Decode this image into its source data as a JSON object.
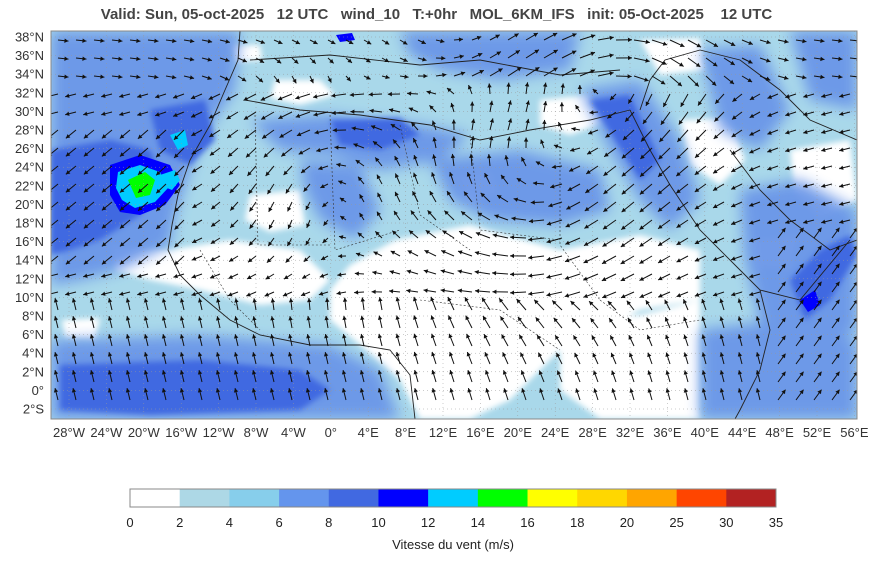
{
  "title": "Valid: Sun, 05-oct-2025   12 UTC   wind_10   T:+0hr   MOL_6KM_IFS   init: 05-Oct-2025    12 UTC",
  "map": {
    "variable": "wind_10",
    "lat_range": [
      -3,
      38.5
    ],
    "lon_range": [
      -30,
      57
    ],
    "lat_ticks": [
      "38°N",
      "36°N",
      "34°N",
      "32°N",
      "30°N",
      "28°N",
      "26°N",
      "24°N",
      "22°N",
      "20°N",
      "18°N",
      "16°N",
      "14°N",
      "12°N",
      "10°N",
      "8°N",
      "6°N",
      "4°N",
      "2°N",
      "0°",
      "2°S"
    ],
    "lon_ticks": [
      "28°W",
      "24°W",
      "20°W",
      "16°W",
      "12°W",
      "8°W",
      "4°W",
      "0°",
      "4°E",
      "8°E",
      "12°E",
      "16°E",
      "20°E",
      "24°E",
      "28°E",
      "32°E",
      "36°E",
      "40°E",
      "44°E",
      "48°E",
      "52°E",
      "56°E"
    ]
  },
  "colorbar": {
    "label": "Vitesse du vent (m/s)",
    "ticks": [
      "0",
      "2",
      "4",
      "6",
      "8",
      "10",
      "12",
      "14",
      "16",
      "18",
      "20",
      "25",
      "30",
      "35"
    ],
    "colors": [
      "#ffffff",
      "#add8e6",
      "#87ceeb",
      "#6495ed",
      "#4169e1",
      "#0000ff",
      "#00ccff",
      "#00ff00",
      "#ffff00",
      "#ffd700",
      "#ffa500",
      "#ff4500",
      "#b22222"
    ]
  }
}
